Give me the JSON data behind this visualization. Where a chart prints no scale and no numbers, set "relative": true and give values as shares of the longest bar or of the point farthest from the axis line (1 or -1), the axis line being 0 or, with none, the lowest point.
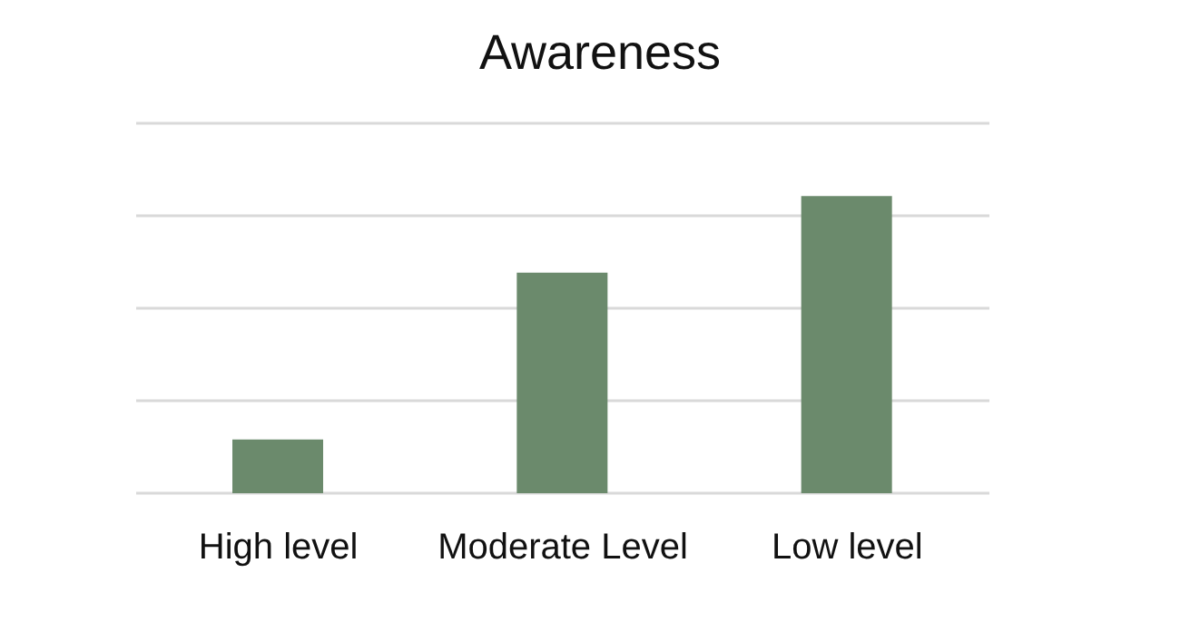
{
  "chart_data": {
    "type": "bar",
    "title": "Awareness",
    "categories": [
      "High level",
      "Moderate Level",
      "Low level"
    ],
    "values": [
      0.181,
      0.742,
      1
    ],
    "color": "#6b8a6c",
    "relative": true,
    "grid": "y"
  }
}
